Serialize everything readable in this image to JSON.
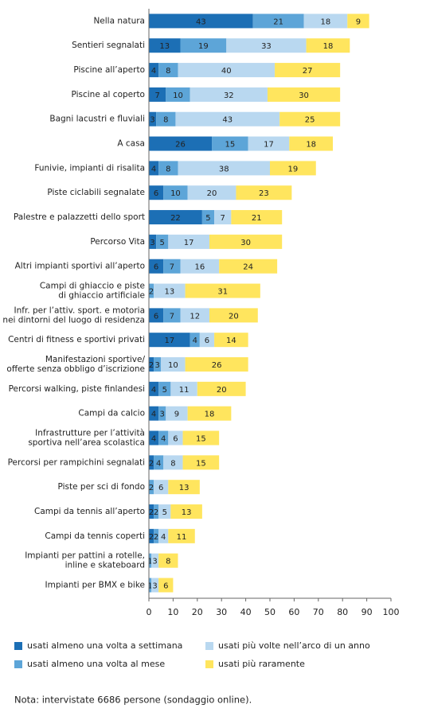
{
  "chart_data": {
    "type": "stacked-barh",
    "categories": [
      "Nella natura",
      "Sentieri segnalati",
      "Piscine all’aperto",
      "Piscine al coperto",
      "Bagni lacustri e fluviali",
      "A casa",
      "Funivie, impianti di risalita",
      "Piste ciclabili segnalate",
      "Palestre e palazzetti dello sport",
      "Percorso Vita",
      "Altri impianti sportivi all’aperto",
      "Campi di ghiaccio e piste\ndi ghiaccio artificiale",
      "Infr. per l’attiv. sport. e motoria\nnei dintorni del luogo di residenza",
      "Centri di fitness e sportivi privati",
      "Manifestazioni sportive/\nofferte senza obbligo d’iscrizione",
      "Percorsi walking, piste finlandesi",
      "Campi da calcio",
      "Infrastrutture per l’attività\nsportiva nell’area scolastica",
      "Percorsi per rampichini segnalati",
      "Piste per sci di fondo",
      "Campi da tennis all’aperto",
      "Campi da tennis coperti",
      "Impianti per pattini a rotelle,\ninline e skateboard",
      "Impianti per BMX e bike"
    ],
    "series": [
      {
        "name": "usati almeno una volta a settimana",
        "color": "#1c6fb5",
        "values": [
          43,
          13,
          4,
          7,
          3,
          26,
          4,
          6,
          22,
          3,
          6,
          null,
          6,
          17,
          2,
          4,
          4,
          4,
          2,
          null,
          2,
          2,
          null,
          null
        ]
      },
      {
        "name": "usati almeno una volta al mese",
        "color": "#5da5d8",
        "values": [
          21,
          19,
          8,
          10,
          8,
          15,
          8,
          10,
          5,
          5,
          7,
          2,
          7,
          4,
          3,
          5,
          3,
          4,
          4,
          2,
          2,
          2,
          1,
          1
        ]
      },
      {
        "name": "usati più volte nell’arco di un anno",
        "color": "#b9d8f0",
        "values": [
          18,
          33,
          40,
          32,
          43,
          17,
          38,
          20,
          7,
          17,
          16,
          13,
          12,
          6,
          10,
          11,
          9,
          6,
          8,
          6,
          5,
          4,
          3,
          3
        ]
      },
      {
        "name": "usati più raramente",
        "color": "#ffe55e",
        "values": [
          9,
          18,
          27,
          30,
          25,
          18,
          19,
          23,
          21,
          30,
          24,
          31,
          20,
          14,
          26,
          20,
          18,
          15,
          15,
          13,
          13,
          11,
          8,
          6
        ]
      }
    ],
    "xlim": [
      0,
      100
    ],
    "xticks": [
      0,
      10,
      20,
      30,
      40,
      50,
      60,
      70,
      80,
      90,
      100
    ]
  },
  "note": "Nota: intervistate 6686 persone (sondaggio online)."
}
